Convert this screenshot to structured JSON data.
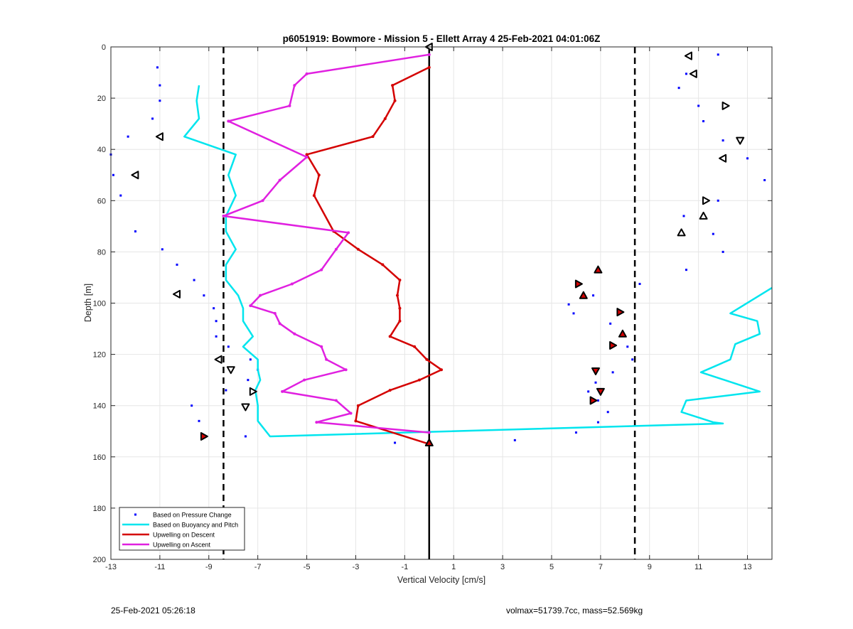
{
  "chart_data": {
    "type": "scatter",
    "title": "p6051919: Bowmore - Mission 5 - Ellett Array 4 25-Feb-2021 04:01:06Z",
    "xlabel": "Vertical Velocity [cm/s]",
    "ylabel": "Depth [m]",
    "xlim": [
      -13,
      14
    ],
    "ylim": [
      0,
      200
    ],
    "y_reversed": true,
    "grid": true,
    "legend_position": "bottom-left",
    "x_ticks": [
      -13,
      -11,
      -9,
      -7,
      -5,
      -3,
      -1,
      1,
      3,
      5,
      7,
      9,
      11,
      13
    ],
    "y_ticks": [
      0,
      20,
      40,
      60,
      80,
      100,
      120,
      140,
      160,
      180,
      200
    ],
    "reference_lines": {
      "solid_x": 0,
      "dashed_x": [
        -8.4,
        8.4
      ],
      "colors": {
        "solid": "#000000",
        "dashed": "#000000"
      }
    },
    "series": [
      {
        "name": "Based on Pressure Change",
        "kind": "dots",
        "color": "#0000ff",
        "points": [
          [
            -11.1,
            8
          ],
          [
            -11,
            15
          ],
          [
            -11,
            21
          ],
          [
            -11.3,
            28
          ],
          [
            -12.3,
            35
          ],
          [
            -13,
            42
          ],
          [
            -12.9,
            50
          ],
          [
            -12.6,
            58
          ],
          [
            -12,
            72
          ],
          [
            -10.9,
            79
          ],
          [
            -10.3,
            85
          ],
          [
            -9.6,
            91
          ],
          [
            -9.2,
            97
          ],
          [
            -8.8,
            102
          ],
          [
            -8.7,
            107
          ],
          [
            -8.7,
            113
          ],
          [
            -8.2,
            117
          ],
          [
            -7.3,
            122
          ],
          [
            -7,
            126
          ],
          [
            -7.4,
            130
          ],
          [
            -8.3,
            134
          ],
          [
            -9.7,
            140
          ],
          [
            -9.4,
            146
          ],
          [
            -7.5,
            152
          ],
          [
            -1.4,
            154.5
          ],
          [
            3.5,
            153.5
          ],
          [
            6,
            150.5
          ],
          [
            6.9,
            146.5
          ],
          [
            7.3,
            142.5
          ],
          [
            6.9,
            138
          ],
          [
            6.5,
            134.5
          ],
          [
            6.8,
            131
          ],
          [
            7.5,
            127
          ],
          [
            8.1,
            117
          ],
          [
            7.4,
            108
          ],
          [
            8.3,
            122
          ],
          [
            5.7,
            100.5
          ],
          [
            5.9,
            104
          ],
          [
            6.7,
            97
          ],
          [
            8.6,
            92.5
          ],
          [
            10.5,
            87
          ],
          [
            12,
            80
          ],
          [
            11.6,
            73
          ],
          [
            10.4,
            66
          ],
          [
            11.8,
            60
          ],
          [
            13.7,
            52
          ],
          [
            13,
            43.5
          ],
          [
            12,
            36.5
          ],
          [
            11.2,
            29
          ],
          [
            11,
            23
          ],
          [
            10.2,
            16
          ],
          [
            10.5,
            10.5
          ],
          [
            11.8,
            3
          ]
        ]
      },
      {
        "name": "Based on Buoyancy and Pitch",
        "kind": "line",
        "color": "#00e5ee",
        "points": [
          [
            -9.4,
            15
          ],
          [
            -9.5,
            21
          ],
          [
            -9.4,
            28
          ],
          [
            -10,
            35
          ],
          [
            -7.9,
            42
          ],
          [
            -8.2,
            50
          ],
          [
            -7.9,
            58
          ],
          [
            -8.3,
            66
          ],
          [
            -8.3,
            72
          ],
          [
            -7.9,
            79
          ],
          [
            -8.3,
            85
          ],
          [
            -8.3,
            91
          ],
          [
            -7.8,
            97
          ],
          [
            -7.6,
            102
          ],
          [
            -7.6,
            107
          ],
          [
            -7.2,
            113
          ],
          [
            -7.6,
            117
          ],
          [
            -7,
            122
          ],
          [
            -7,
            126
          ],
          [
            -6.9,
            130
          ],
          [
            -7.1,
            134
          ],
          [
            -7,
            140
          ],
          [
            -7,
            146
          ],
          [
            -6.5,
            152
          ],
          [
            12,
            147
          ],
          [
            11.6,
            146.5
          ],
          [
            10.3,
            142.5
          ],
          [
            10.5,
            138
          ],
          [
            13.5,
            134.5
          ],
          [
            11.1,
            127
          ],
          [
            12.3,
            122
          ],
          [
            12.5,
            116
          ],
          [
            13.5,
            112
          ],
          [
            13.4,
            107
          ],
          [
            12.3,
            104
          ],
          [
            14,
            94
          ]
        ]
      },
      {
        "name": "Upwelling on Descent",
        "kind": "line",
        "color": "#d40000",
        "points": [
          [
            0,
            8
          ],
          [
            -1.5,
            15
          ],
          [
            -1.4,
            21
          ],
          [
            -1.8,
            28
          ],
          [
            -2.3,
            35
          ],
          [
            -5,
            42
          ],
          [
            -4.5,
            50
          ],
          [
            -4.7,
            58
          ],
          [
            -3.9,
            72
          ],
          [
            -2.9,
            79
          ],
          [
            -1.9,
            85
          ],
          [
            -1.2,
            91
          ],
          [
            -1.3,
            97
          ],
          [
            -1.2,
            102
          ],
          [
            -1.2,
            107
          ],
          [
            -1.6,
            113
          ],
          [
            -0.6,
            117
          ],
          [
            -0.1,
            122
          ],
          [
            0.5,
            126
          ],
          [
            -0.4,
            130
          ],
          [
            -1.6,
            134
          ],
          [
            -2.9,
            140
          ],
          [
            -3,
            146
          ],
          [
            0,
            155
          ]
        ]
      },
      {
        "name": "Upwelling on Ascent",
        "kind": "line",
        "color": "#e020e0",
        "points": [
          [
            0,
            3
          ],
          [
            -5,
            10.5
          ],
          [
            -5.5,
            15
          ],
          [
            -5.7,
            23
          ],
          [
            -8.2,
            29
          ],
          [
            -5,
            43
          ],
          [
            -6.1,
            52
          ],
          [
            -6.8,
            60
          ],
          [
            -8.4,
            66
          ],
          [
            -3.3,
            72.5
          ],
          [
            -3.8,
            79
          ],
          [
            -4.4,
            87
          ],
          [
            -5.6,
            92.5
          ],
          [
            -6.9,
            97
          ],
          [
            -7.3,
            101
          ],
          [
            -6.3,
            104
          ],
          [
            -6.1,
            108
          ],
          [
            -5.5,
            112
          ],
          [
            -4.4,
            117
          ],
          [
            -4.2,
            122
          ],
          [
            -3.4,
            126
          ],
          [
            -5.1,
            130
          ],
          [
            -6,
            134.5
          ],
          [
            -3.8,
            138
          ],
          [
            -3.2,
            143
          ],
          [
            -4.6,
            146.5
          ],
          [
            0,
            150.5
          ]
        ]
      }
    ],
    "triangle_markers": [
      {
        "x": 0,
        "y": 0,
        "dir": "left",
        "filled": false
      },
      {
        "x": 10.6,
        "y": 3.5,
        "dir": "left",
        "filled": false
      },
      {
        "x": 10.8,
        "y": 10.5,
        "dir": "left",
        "filled": false
      },
      {
        "x": 12.1,
        "y": 23,
        "dir": "right",
        "filled": false
      },
      {
        "x": -11,
        "y": 35,
        "dir": "left",
        "filled": false
      },
      {
        "x": 12.7,
        "y": 36.5,
        "dir": "down",
        "filled": false
      },
      {
        "x": 12,
        "y": 43.5,
        "dir": "left",
        "filled": false
      },
      {
        "x": -12,
        "y": 50,
        "dir": "left",
        "filled": false
      },
      {
        "x": 11.3,
        "y": 60,
        "dir": "right",
        "filled": false
      },
      {
        "x": 11.2,
        "y": 66,
        "dir": "up",
        "filled": false
      },
      {
        "x": 10.3,
        "y": 72.5,
        "dir": "up",
        "filled": false
      },
      {
        "x": 6.9,
        "y": 87,
        "dir": "up",
        "filled": true
      },
      {
        "x": 6.1,
        "y": 92.5,
        "dir": "right",
        "filled": true
      },
      {
        "x": 6.3,
        "y": 97,
        "dir": "up",
        "filled": true
      },
      {
        "x": -10.3,
        "y": 96.5,
        "dir": "left",
        "filled": false
      },
      {
        "x": 7.8,
        "y": 103.5,
        "dir": "right",
        "filled": true
      },
      {
        "x": 7.9,
        "y": 112,
        "dir": "up",
        "filled": true
      },
      {
        "x": 7.5,
        "y": 116.5,
        "dir": "right",
        "filled": true
      },
      {
        "x": -8.6,
        "y": 122,
        "dir": "left",
        "filled": false
      },
      {
        "x": -8.1,
        "y": 126,
        "dir": "down",
        "filled": false
      },
      {
        "x": 6.8,
        "y": 126.5,
        "dir": "down",
        "filled": true
      },
      {
        "x": -7.2,
        "y": 134.5,
        "dir": "right",
        "filled": false
      },
      {
        "x": 7,
        "y": 134.5,
        "dir": "down",
        "filled": true
      },
      {
        "x": 6.7,
        "y": 138,
        "dir": "right",
        "filled": true
      },
      {
        "x": -7.5,
        "y": 140.5,
        "dir": "down",
        "filled": false
      },
      {
        "x": -9.2,
        "y": 152,
        "dir": "right",
        "filled": true
      },
      {
        "x": 0,
        "y": 154.5,
        "dir": "up",
        "filled": true
      }
    ]
  },
  "footer": {
    "left": "25-Feb-2021 05:26:18",
    "right": "volmax=51739.7cc, mass=52.569kg"
  }
}
